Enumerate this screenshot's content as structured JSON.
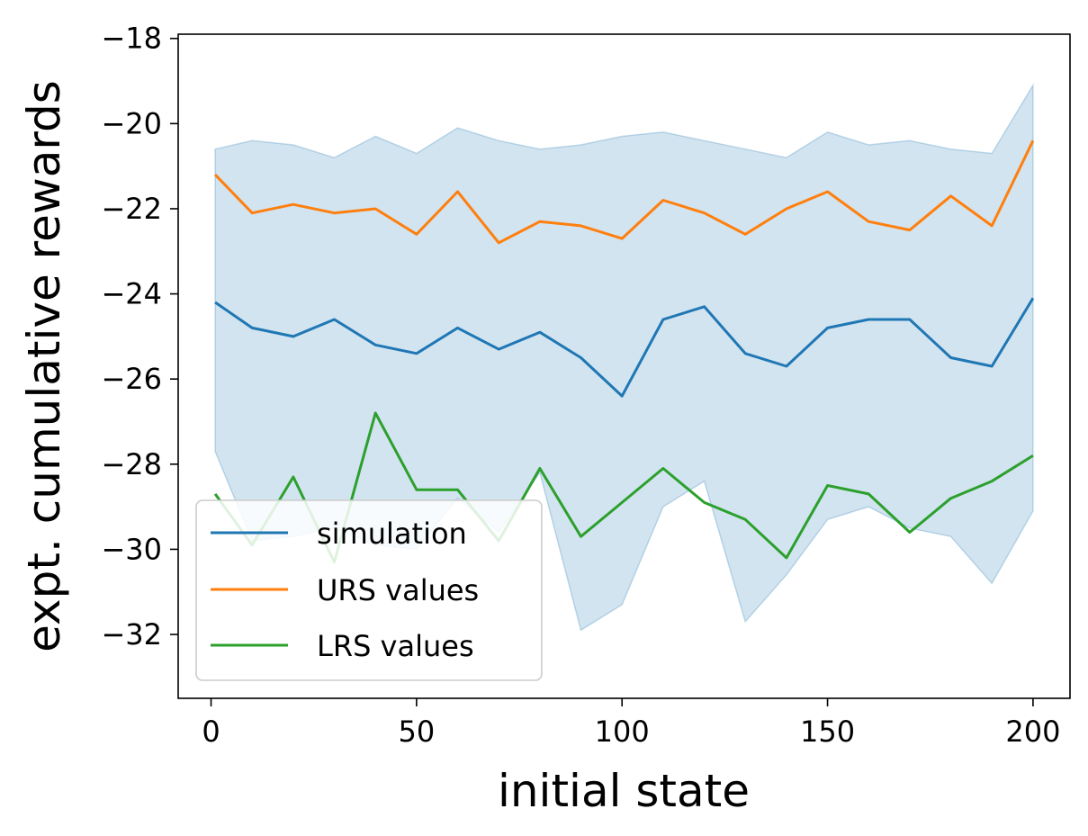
{
  "chart_data": {
    "type": "line",
    "title": "",
    "xlabel": "initial state",
    "ylabel": "expt. cumulative rewards",
    "xlim": [
      -8,
      209
    ],
    "ylim": [
      -33.5,
      -17.9
    ],
    "xticks": [
      0,
      50,
      100,
      150,
      200
    ],
    "yticks": [
      -32,
      -30,
      -28,
      -26,
      -24,
      -22,
      -20,
      -18
    ],
    "xtick_labels": [
      "0",
      "50",
      "100",
      "150",
      "200"
    ],
    "ytick_labels": [
      "−32",
      "−30",
      "−28",
      "−26",
      "−24",
      "−22",
      "−20",
      "−18"
    ],
    "legend_position": "lower-left",
    "series": [
      {
        "name": "simulation",
        "color": "#1f77b4",
        "x": [
          1,
          10,
          20,
          30,
          40,
          50,
          60,
          70,
          80,
          90,
          100,
          110,
          120,
          130,
          140,
          150,
          160,
          170,
          180,
          190,
          200
        ],
        "values": [
          -24.2,
          -24.8,
          -25.0,
          -24.6,
          -25.2,
          -25.4,
          -24.8,
          -25.3,
          -24.9,
          -25.5,
          -26.4,
          -24.6,
          -24.3,
          -25.4,
          -25.7,
          -24.8,
          -24.6,
          -24.6,
          -25.5,
          -25.7,
          -24.1
        ],
        "band_upper": [
          -20.6,
          -20.4,
          -20.5,
          -20.8,
          -20.3,
          -20.7,
          -20.1,
          -20.4,
          -20.6,
          -20.5,
          -20.3,
          -20.2,
          -20.4,
          -20.6,
          -20.8,
          -20.2,
          -20.5,
          -20.4,
          -20.6,
          -20.7,
          -19.1
        ],
        "band_lower": [
          -27.7,
          -29.8,
          -29.7,
          -29.5,
          -29.9,
          -30.0,
          -28.8,
          -29.6,
          -28.2,
          -31.9,
          -31.3,
          -29.0,
          -28.4,
          -31.7,
          -30.6,
          -29.3,
          -29.0,
          -29.5,
          -29.7,
          -30.8,
          -29.1
        ]
      },
      {
        "name": "URS values",
        "color": "#ff7f0e",
        "x": [
          1,
          10,
          20,
          30,
          40,
          50,
          60,
          70,
          80,
          90,
          100,
          110,
          120,
          130,
          140,
          150,
          160,
          170,
          180,
          190,
          200
        ],
        "values": [
          -21.2,
          -22.1,
          -21.9,
          -22.1,
          -22.0,
          -22.6,
          -21.6,
          -22.8,
          -22.3,
          -22.4,
          -22.7,
          -21.8,
          -22.1,
          -22.6,
          -22.0,
          -21.6,
          -22.3,
          -22.5,
          -21.7,
          -22.4,
          -20.4
        ]
      },
      {
        "name": "LRS values",
        "color": "#2ca02c",
        "x": [
          1,
          10,
          20,
          30,
          40,
          50,
          60,
          70,
          80,
          90,
          100,
          110,
          120,
          130,
          140,
          150,
          160,
          170,
          180,
          190,
          200
        ],
        "values": [
          -28.7,
          -29.9,
          -28.3,
          -30.3,
          -26.8,
          -28.6,
          -28.6,
          -29.8,
          -28.1,
          -29.7,
          -28.9,
          -28.1,
          -28.9,
          -29.3,
          -30.2,
          -28.5,
          -28.7,
          -29.6,
          -28.8,
          -28.4,
          -27.8
        ]
      }
    ]
  }
}
